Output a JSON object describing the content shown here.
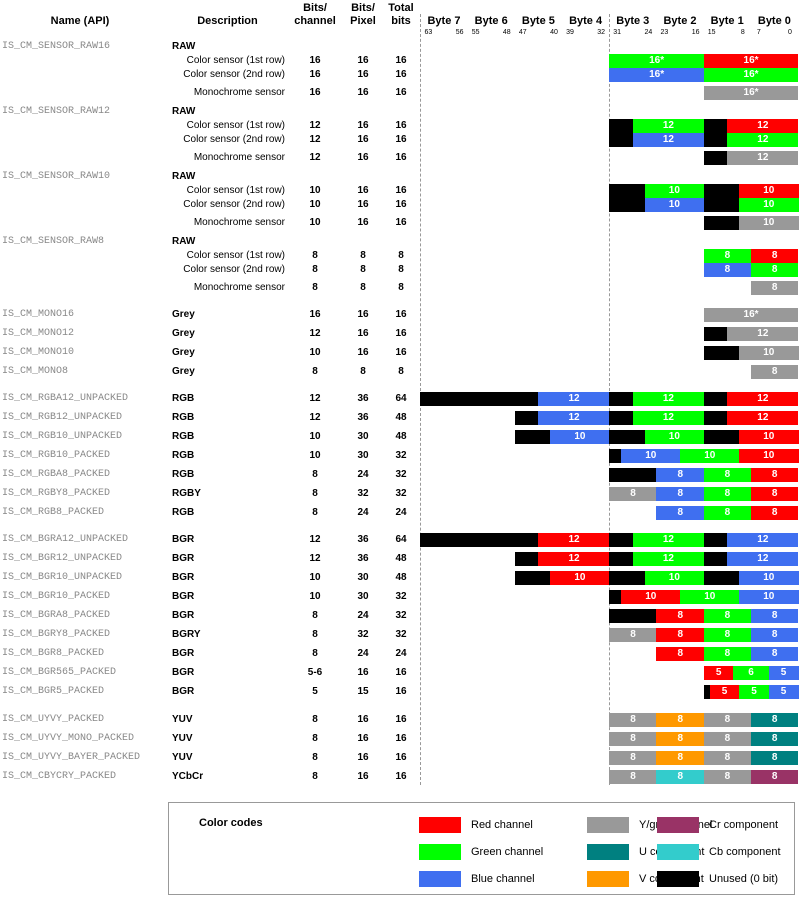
{
  "headers": {
    "name": "Name (API)",
    "description": "Description",
    "bits_channel": "Bits/\nchannel",
    "bits_pixel": "Bits/\nPixel",
    "total_bits": "Total\nbits",
    "bytes": [
      "Byte 7",
      "Byte 6",
      "Byte 5",
      "Byte 4",
      "Byte 3",
      "Byte 2",
      "Byte 1",
      "Byte 0"
    ],
    "bit_numbers": [
      "63",
      "56",
      "55",
      "48",
      "47",
      "40",
      "39",
      "32",
      "31",
      "24",
      "23",
      "16",
      "15",
      "8",
      "7",
      "0"
    ]
  },
  "colors": {
    "R": "#ff0000",
    "G": "#00ff00",
    "B": "#3f6ff0",
    "Y": "#999999",
    "U": "#008080",
    "V": "#ff9900",
    "X": "#000000",
    "Cb": "#33cccc",
    "Cr": "#993366"
  },
  "rows": [
    {
      "api": "IS_CM_SENSOR_RAW16",
      "desc": "RAW",
      "bold": true
    },
    {
      "desc": "Color sensor (1st row)",
      "bc": "16",
      "bp": "16",
      "tb": "16",
      "segs": [
        [
          "G",
          16,
          "16*"
        ],
        [
          "R",
          16,
          "16*"
        ]
      ]
    },
    {
      "desc": "Color sensor (2nd row)",
      "bc": "16",
      "bp": "16",
      "tb": "16",
      "segs": [
        [
          "B",
          16,
          "16*"
        ],
        [
          "G",
          16,
          "16*"
        ]
      ]
    },
    {
      "desc": "Monochrome sensor",
      "bc": "16",
      "bp": "16",
      "tb": "16",
      "segs": [
        [
          "Y",
          16,
          "16*"
        ]
      ]
    },
    {
      "api": "IS_CM_SENSOR_RAW12",
      "desc": "RAW",
      "bold": true
    },
    {
      "desc": "Color sensor (1st row)",
      "bc": "12",
      "bp": "16",
      "tb": "16",
      "segs": [
        [
          "X",
          4,
          ""
        ],
        [
          "G",
          12,
          "12"
        ],
        [
          "X",
          4,
          ""
        ],
        [
          "R",
          12,
          "12"
        ]
      ]
    },
    {
      "desc": "Color sensor (2nd row)",
      "bc": "12",
      "bp": "16",
      "tb": "16",
      "segs": [
        [
          "X",
          4,
          ""
        ],
        [
          "B",
          12,
          "12"
        ],
        [
          "X",
          4,
          ""
        ],
        [
          "G",
          12,
          "12"
        ]
      ]
    },
    {
      "desc": "Monochrome sensor",
      "bc": "12",
      "bp": "16",
      "tb": "16",
      "segs": [
        [
          "X",
          4,
          ""
        ],
        [
          "Y",
          12,
          "12"
        ]
      ]
    },
    {
      "api": "IS_CM_SENSOR_RAW10",
      "desc": "RAW",
      "bold": true
    },
    {
      "desc": "Color sensor (1st row)",
      "bc": "10",
      "bp": "16",
      "tb": "16",
      "segs": [
        [
          "X",
          6,
          ""
        ],
        [
          "G",
          10,
          "10"
        ],
        [
          "X",
          6,
          ""
        ],
        [
          "R",
          10,
          "10"
        ]
      ]
    },
    {
      "desc": "Color sensor (2nd row)",
      "bc": "10",
      "bp": "16",
      "tb": "16",
      "segs": [
        [
          "X",
          6,
          ""
        ],
        [
          "B",
          10,
          "10"
        ],
        [
          "X",
          6,
          ""
        ],
        [
          "G",
          10,
          "10"
        ]
      ]
    },
    {
      "desc": "Monochrome sensor",
      "bc": "10",
      "bp": "16",
      "tb": "16",
      "segs": [
        [
          "X",
          6,
          ""
        ],
        [
          "Y",
          10,
          "10"
        ]
      ]
    },
    {
      "api": "IS_CM_SENSOR_RAW8",
      "desc": "RAW",
      "bold": true
    },
    {
      "desc": "Color sensor (1st row)",
      "bc": "8",
      "bp": "8",
      "tb": "8",
      "segs": [
        [
          "G",
          8,
          "8"
        ],
        [
          "R",
          8,
          "8"
        ]
      ]
    },
    {
      "desc": "Color sensor (2nd row)",
      "bc": "8",
      "bp": "8",
      "tb": "8",
      "segs": [
        [
          "B",
          8,
          "8"
        ],
        [
          "G",
          8,
          "8"
        ]
      ]
    },
    {
      "desc": "Monochrome sensor",
      "bc": "8",
      "bp": "8",
      "tb": "8",
      "segs": [
        [
          "Y",
          8,
          "8"
        ]
      ]
    },
    {
      "api": "IS_CM_MONO16",
      "desc": "Grey",
      "bold": true,
      "bc": "16",
      "bp": "16",
      "tb": "16",
      "segs": [
        [
          "Y",
          16,
          "16*"
        ]
      ]
    },
    {
      "api": "IS_CM_MONO12",
      "desc": "Grey",
      "bold": true,
      "bc": "12",
      "bp": "16",
      "tb": "16",
      "segs": [
        [
          "X",
          4,
          ""
        ],
        [
          "Y",
          12,
          "12"
        ]
      ]
    },
    {
      "api": "IS_CM_MONO10",
      "desc": "Grey",
      "bold": true,
      "bc": "10",
      "bp": "16",
      "tb": "16",
      "segs": [
        [
          "X",
          6,
          ""
        ],
        [
          "Y",
          10,
          "10"
        ]
      ]
    },
    {
      "api": "IS_CM_MONO8",
      "desc": "Grey",
      "bold": true,
      "bc": "8",
      "bp": "8",
      "tb": "8",
      "segs": [
        [
          "Y",
          8,
          "8"
        ]
      ]
    },
    {
      "api": "IS_CM_RGBA12_UNPACKED",
      "desc": "RGB",
      "bold": true,
      "bc": "12",
      "bp": "36",
      "tb": "64",
      "segs": [
        [
          "X",
          20,
          ""
        ],
        [
          "B",
          12,
          "12"
        ],
        [
          "X",
          4,
          ""
        ],
        [
          "G",
          12,
          "12"
        ],
        [
          "X",
          4,
          ""
        ],
        [
          "R",
          12,
          "12"
        ]
      ]
    },
    {
      "api": "IS_CM_RGB12_UNPACKED",
      "desc": "RGB",
      "bold": true,
      "bc": "12",
      "bp": "36",
      "tb": "48",
      "segs": [
        [
          "X",
          4,
          ""
        ],
        [
          "B",
          12,
          "12"
        ],
        [
          "X",
          4,
          ""
        ],
        [
          "G",
          12,
          "12"
        ],
        [
          "X",
          4,
          ""
        ],
        [
          "R",
          12,
          "12"
        ]
      ]
    },
    {
      "api": "IS_CM_RGB10_UNPACKED",
      "desc": "RGB",
      "bold": true,
      "bc": "10",
      "bp": "30",
      "tb": "48",
      "segs": [
        [
          "X",
          6,
          ""
        ],
        [
          "B",
          10,
          "10"
        ],
        [
          "X",
          6,
          ""
        ],
        [
          "G",
          10,
          "10"
        ],
        [
          "X",
          6,
          ""
        ],
        [
          "R",
          10,
          "10"
        ]
      ]
    },
    {
      "api": "IS_CM_RGB10_PACKED",
      "desc": "RGB",
      "bold": true,
      "bc": "10",
      "bp": "30",
      "tb": "32",
      "segs": [
        [
          "X",
          2,
          ""
        ],
        [
          "B",
          10,
          "10"
        ],
        [
          "G",
          10,
          "10"
        ],
        [
          "R",
          10,
          "10"
        ]
      ]
    },
    {
      "api": "IS_CM_RGBA8_PACKED",
      "desc": "RGB",
      "bold": true,
      "bc": "8",
      "bp": "24",
      "tb": "32",
      "segs": [
        [
          "X",
          8,
          ""
        ],
        [
          "B",
          8,
          "8"
        ],
        [
          "G",
          8,
          "8"
        ],
        [
          "R",
          8,
          "8"
        ]
      ]
    },
    {
      "api": "IS_CM_RGBY8_PACKED",
      "desc": "RGBY",
      "bold": true,
      "bc": "8",
      "bp": "32",
      "tb": "32",
      "segs": [
        [
          "Y",
          8,
          "8"
        ],
        [
          "B",
          8,
          "8"
        ],
        [
          "G",
          8,
          "8"
        ],
        [
          "R",
          8,
          "8"
        ]
      ]
    },
    {
      "api": "IS_CM_RGB8_PACKED",
      "desc": "RGB",
      "bold": true,
      "bc": "8",
      "bp": "24",
      "tb": "24",
      "segs": [
        [
          "B",
          8,
          "8"
        ],
        [
          "G",
          8,
          "8"
        ],
        [
          "R",
          8,
          "8"
        ]
      ]
    },
    {
      "api": "IS_CM_BGRA12_UNPACKED",
      "desc": "BGR",
      "bold": true,
      "bc": "12",
      "bp": "36",
      "tb": "64",
      "segs": [
        [
          "X",
          20,
          ""
        ],
        [
          "R",
          12,
          "12"
        ],
        [
          "X",
          4,
          ""
        ],
        [
          "G",
          12,
          "12"
        ],
        [
          "X",
          4,
          ""
        ],
        [
          "B",
          12,
          "12"
        ]
      ]
    },
    {
      "api": "IS_CM_BGR12_UNPACKED",
      "desc": "BGR",
      "bold": true,
      "bc": "12",
      "bp": "36",
      "tb": "48",
      "segs": [
        [
          "X",
          4,
          ""
        ],
        [
          "R",
          12,
          "12"
        ],
        [
          "X",
          4,
          ""
        ],
        [
          "G",
          12,
          "12"
        ],
        [
          "X",
          4,
          ""
        ],
        [
          "B",
          12,
          "12"
        ]
      ]
    },
    {
      "api": "IS_CM_BGR10_UNPACKED",
      "desc": "BGR",
      "bold": true,
      "bc": "10",
      "bp": "30",
      "tb": "48",
      "segs": [
        [
          "X",
          6,
          ""
        ],
        [
          "R",
          10,
          "10"
        ],
        [
          "X",
          6,
          ""
        ],
        [
          "G",
          10,
          "10"
        ],
        [
          "X",
          6,
          ""
        ],
        [
          "B",
          10,
          "10"
        ]
      ]
    },
    {
      "api": "IS_CM_BGR10_PACKED",
      "desc": "BGR",
      "bold": true,
      "bc": "10",
      "bp": "30",
      "tb": "32",
      "segs": [
        [
          "X",
          2,
          ""
        ],
        [
          "R",
          10,
          "10"
        ],
        [
          "G",
          10,
          "10"
        ],
        [
          "B",
          10,
          "10"
        ]
      ]
    },
    {
      "api": "IS_CM_BGRA8_PACKED",
      "desc": "BGR",
      "bold": true,
      "bc": "8",
      "bp": "24",
      "tb": "32",
      "segs": [
        [
          "X",
          8,
          ""
        ],
        [
          "R",
          8,
          "8"
        ],
        [
          "G",
          8,
          "8"
        ],
        [
          "B",
          8,
          "8"
        ]
      ]
    },
    {
      "api": "IS_CM_BGRY8_PACKED",
      "desc": "BGRY",
      "bold": true,
      "bc": "8",
      "bp": "32",
      "tb": "32",
      "segs": [
        [
          "Y",
          8,
          "8"
        ],
        [
          "R",
          8,
          "8"
        ],
        [
          "G",
          8,
          "8"
        ],
        [
          "B",
          8,
          "8"
        ]
      ]
    },
    {
      "api": "IS_CM_BGR8_PACKED",
      "desc": "BGR",
      "bold": true,
      "bc": "8",
      "bp": "24",
      "tb": "24",
      "segs": [
        [
          "R",
          8,
          "8"
        ],
        [
          "G",
          8,
          "8"
        ],
        [
          "B",
          8,
          "8"
        ]
      ]
    },
    {
      "api": "IS_CM_BGR565_PACKED",
      "desc": "BGR",
      "bold": true,
      "bc": "5-6",
      "bp": "16",
      "tb": "16",
      "segs": [
        [
          "R",
          5,
          "5"
        ],
        [
          "G",
          6,
          "6"
        ],
        [
          "B",
          5,
          "5"
        ]
      ]
    },
    {
      "api": "IS_CM_BGR5_PACKED",
      "desc": "BGR",
      "bold": true,
      "bc": "5",
      "bp": "15",
      "tb": "16",
      "segs": [
        [
          "X",
          1,
          ""
        ],
        [
          "R",
          5,
          "5"
        ],
        [
          "G",
          5,
          "5"
        ],
        [
          "B",
          5,
          "5"
        ]
      ]
    },
    {
      "api": "IS_CM_UYVY_PACKED",
      "desc": "YUV",
      "bold": true,
      "bc": "8",
      "bp": "16",
      "tb": "16",
      "segs": [
        [
          "Y",
          8,
          "8"
        ],
        [
          "V",
          8,
          "8"
        ],
        [
          "Y",
          8,
          "8"
        ],
        [
          "U",
          8,
          "8"
        ]
      ]
    },
    {
      "api": "IS_CM_UYVY_MONO_PACKED",
      "desc": "YUV",
      "bold": true,
      "bc": "8",
      "bp": "16",
      "tb": "16",
      "segs": [
        [
          "Y",
          8,
          "8"
        ],
        [
          "V",
          8,
          "8"
        ],
        [
          "Y",
          8,
          "8"
        ],
        [
          "U",
          8,
          "8"
        ]
      ]
    },
    {
      "api": "IS_CM_UYVY_BAYER_PACKED",
      "desc": "YUV",
      "bold": true,
      "bc": "8",
      "bp": "16",
      "tb": "16",
      "segs": [
        [
          "Y",
          8,
          "8"
        ],
        [
          "V",
          8,
          "8"
        ],
        [
          "Y",
          8,
          "8"
        ],
        [
          "U",
          8,
          "8"
        ]
      ]
    },
    {
      "api": "IS_CM_CBYCRY_PACKED",
      "desc": "YCbCr",
      "bold": true,
      "bc": "8",
      "bp": "16",
      "tb": "16",
      "segs": [
        [
          "Y",
          8,
          "8"
        ],
        [
          "Cb",
          8,
          "8"
        ],
        [
          "Y",
          8,
          "8"
        ],
        [
          "Cr",
          8,
          "8"
        ]
      ]
    }
  ],
  "legend": {
    "title": "Color codes",
    "items": [
      {
        "code": "R",
        "label": "Red channel"
      },
      {
        "code": "Y",
        "label": "Y/grey channel"
      },
      {
        "code": "Cr",
        "label": "Cr component"
      },
      {
        "code": "G",
        "label": "Green channel"
      },
      {
        "code": "U",
        "label": "U component"
      },
      {
        "code": "Cb",
        "label": "Cb component"
      },
      {
        "code": "B",
        "label": "Blue channel"
      },
      {
        "code": "V",
        "label": "V component"
      },
      {
        "code": "X",
        "label": "Unused (0 bit)"
      }
    ]
  }
}
